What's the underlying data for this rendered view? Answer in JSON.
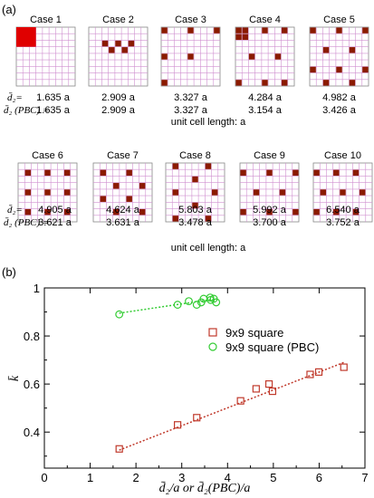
{
  "panel_a": {
    "label": "(a)",
    "row_labels": {
      "d2": "d̄₂=",
      "d2_pbc": "d̄₂ (PBC) ="
    },
    "unit_note": "unit cell length: a",
    "cases": [
      {
        "name": "Case 1",
        "d2": "1.635 a",
        "d2_pbc": "1.635 a"
      },
      {
        "name": "Case 2",
        "d2": "2.909 a",
        "d2_pbc": "2.909 a"
      },
      {
        "name": "Case 3",
        "d2": "3.327 a",
        "d2_pbc": "3.327 a"
      },
      {
        "name": "Case 4",
        "d2": "4.284 a",
        "d2_pbc": "3.154 a"
      },
      {
        "name": "Case 5",
        "d2": "4.982 a",
        "d2_pbc": "3.426 a"
      },
      {
        "name": "Case 6",
        "d2": "4.905 a",
        "d2_pbc": "3.621 a"
      },
      {
        "name": "Case 7",
        "d2": "4.624 a",
        "d2_pbc": "3.631 a"
      },
      {
        "name": "Case 8",
        "d2": "5.803 a",
        "d2_pbc": "3.478 a"
      },
      {
        "name": "Case 9",
        "d2": "5.992 a",
        "d2_pbc": "3.700 a"
      },
      {
        "name": "Case 10",
        "d2": "6.540 a",
        "d2_pbc": "3.752 a"
      }
    ],
    "colors": {
      "filled": "#b30000",
      "filled_dark": "#8b1a00",
      "grid_line": "#d090d0",
      "big_red": "#e00000"
    }
  },
  "chart_data": {
    "type": "scatter",
    "panel_label": "(b)",
    "xlabel": "d̄₂/a  or  d̄₂(PBC)/a",
    "ylabel": "k̄",
    "xlim": [
      0,
      7
    ],
    "ylim": [
      0.25,
      1.0
    ],
    "xticks": [
      0,
      1,
      2,
      3,
      4,
      5,
      6,
      7
    ],
    "yticks": [
      0.4,
      0.6,
      0.8,
      1.0
    ],
    "ytick_labels": [
      "0.4",
      "0.6",
      "0.8",
      "1"
    ],
    "legend_position": "center-right",
    "series": [
      {
        "name": "9x9 square",
        "marker": "square",
        "color": "#c0392b",
        "x": [
          1.635,
          2.909,
          3.327,
          4.284,
          4.624,
          4.905,
          4.982,
          5.803,
          5.992,
          6.54
        ],
        "y": [
          0.33,
          0.43,
          0.46,
          0.53,
          0.58,
          0.6,
          0.57,
          0.64,
          0.65,
          0.67
        ],
        "fit": [
          [
            1.635,
            0.325
          ],
          [
            6.54,
            0.69
          ]
        ]
      },
      {
        "name": "9x9 square (PBC)",
        "marker": "circle",
        "color": "#33cc33",
        "x": [
          1.635,
          2.909,
          3.154,
          3.327,
          3.426,
          3.478,
          3.621,
          3.631,
          3.7,
          3.752
        ],
        "y": [
          0.89,
          0.93,
          0.945,
          0.93,
          0.94,
          0.955,
          0.96,
          0.95,
          0.955,
          0.94
        ],
        "fit": [
          [
            1.635,
            0.895
          ],
          [
            3.752,
            0.955
          ]
        ]
      }
    ]
  }
}
